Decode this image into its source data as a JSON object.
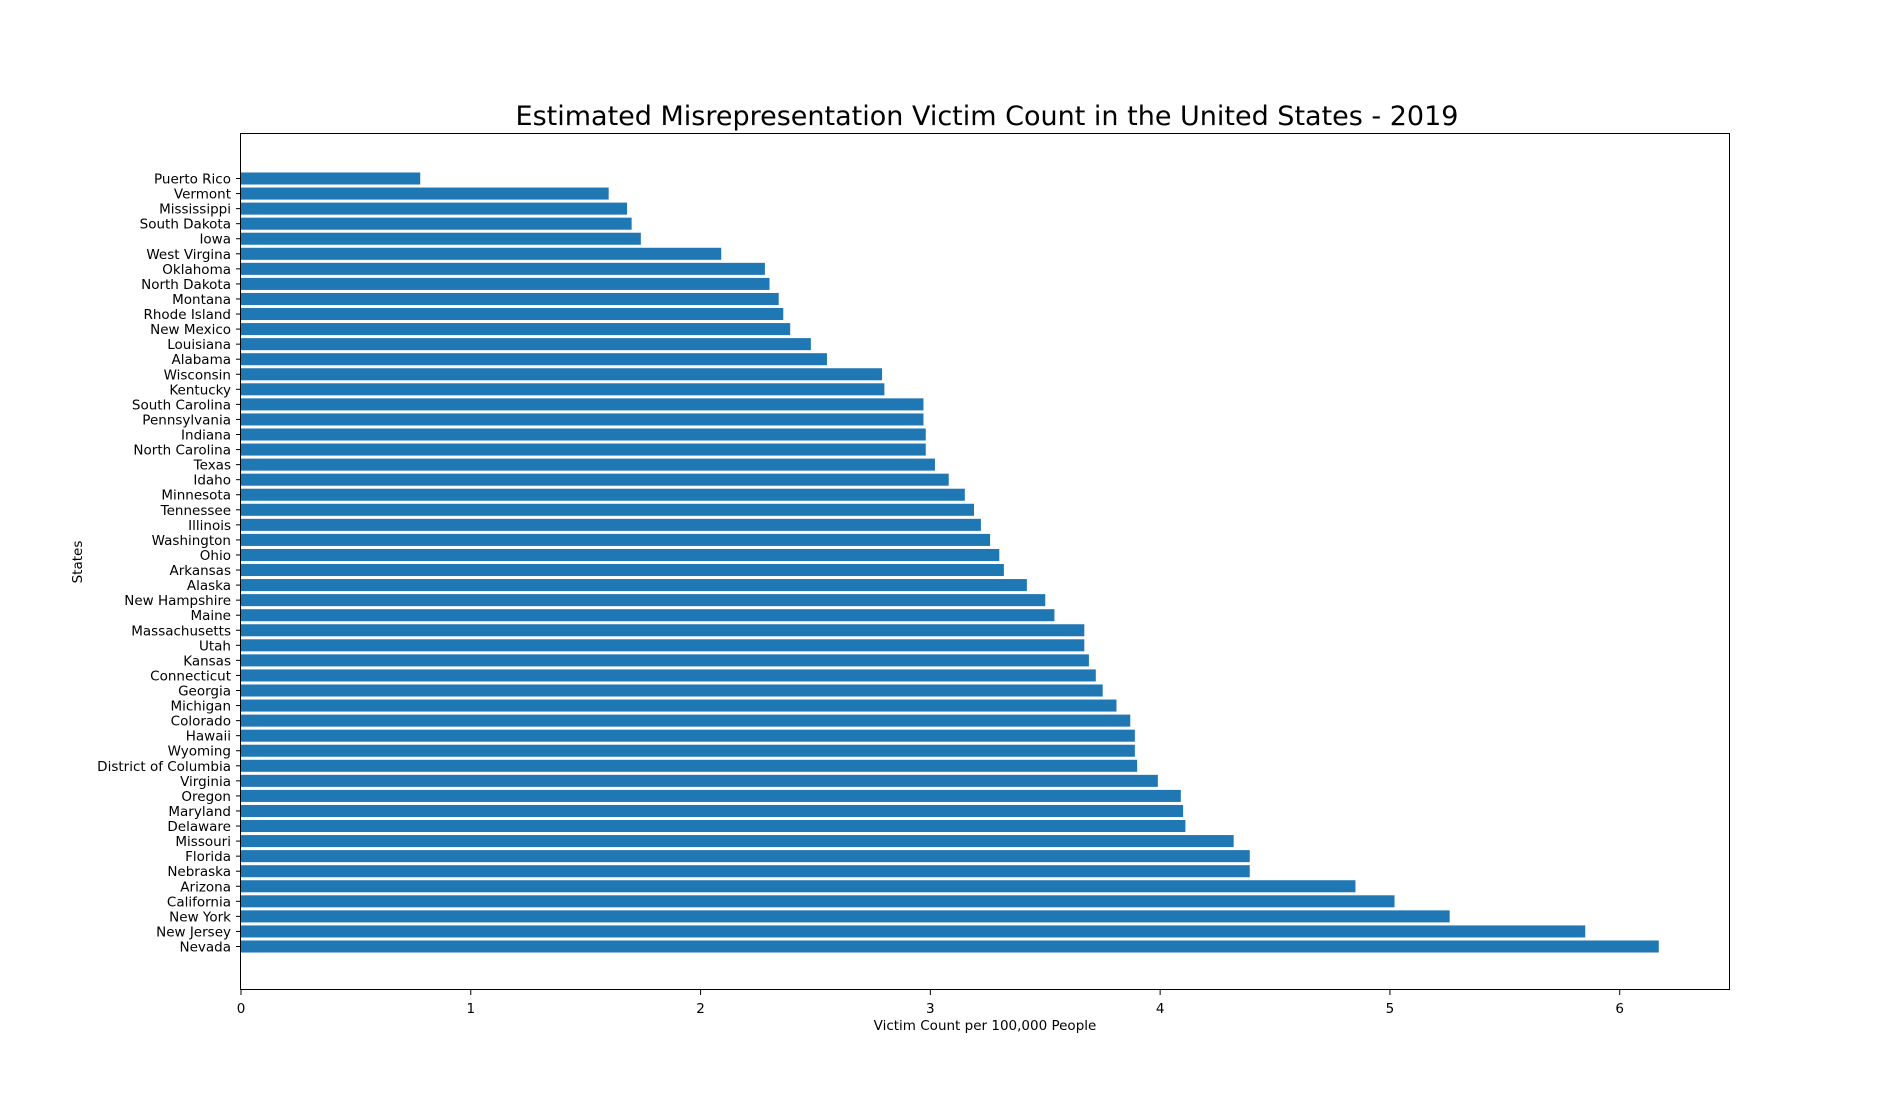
{
  "chart_data": {
    "type": "bar",
    "orientation": "horizontal",
    "title": "Estimated Misrepresentation Victim Count in the United States - 2019",
    "xlabel": "Victim Count per 100,000 People",
    "ylabel": "States",
    "xlim": [
      0,
      6.48
    ],
    "xticks": [
      0,
      1,
      2,
      3,
      4,
      5,
      6
    ],
    "grid": false,
    "bar_color": "#1f77b4",
    "categories": [
      "Nevada",
      "New Jersey",
      "New York",
      "California",
      "Arizona",
      "Nebraska",
      "Florida",
      "Missouri",
      "Delaware",
      "Maryland",
      "Oregon",
      "Virginia",
      "District of Columbia",
      "Wyoming",
      "Hawaii",
      "Colorado",
      "Michigan",
      "Georgia",
      "Connecticut",
      "Kansas",
      "Utah",
      "Massachusetts",
      "Maine",
      "New Hampshire",
      "Alaska",
      "Arkansas",
      "Ohio",
      "Washington",
      "Illinois",
      "Tennessee",
      "Minnesota",
      "Idaho",
      "Texas",
      "North Carolina",
      "Indiana",
      "Pennsylvania",
      "South Carolina",
      "Kentucky",
      "Wisconsin",
      "Alabama",
      "Louisiana",
      "New Mexico",
      "Rhode Island",
      "Montana",
      "North Dakota",
      "Oklahoma",
      "West Virgina",
      "Iowa",
      "South Dakota",
      "Mississippi",
      "Vermont",
      "Puerto Rico"
    ],
    "values": [
      6.17,
      5.85,
      5.26,
      5.02,
      4.85,
      4.39,
      4.39,
      4.32,
      4.11,
      4.1,
      4.09,
      3.99,
      3.9,
      3.89,
      3.89,
      3.87,
      3.81,
      3.75,
      3.72,
      3.69,
      3.67,
      3.67,
      3.54,
      3.5,
      3.42,
      3.32,
      3.3,
      3.26,
      3.22,
      3.19,
      3.15,
      3.08,
      3.02,
      2.98,
      2.98,
      2.97,
      2.97,
      2.8,
      2.79,
      2.55,
      2.48,
      2.39,
      2.36,
      2.34,
      2.3,
      2.28,
      2.09,
      1.74,
      1.7,
      1.68,
      1.6,
      0.78
    ]
  }
}
